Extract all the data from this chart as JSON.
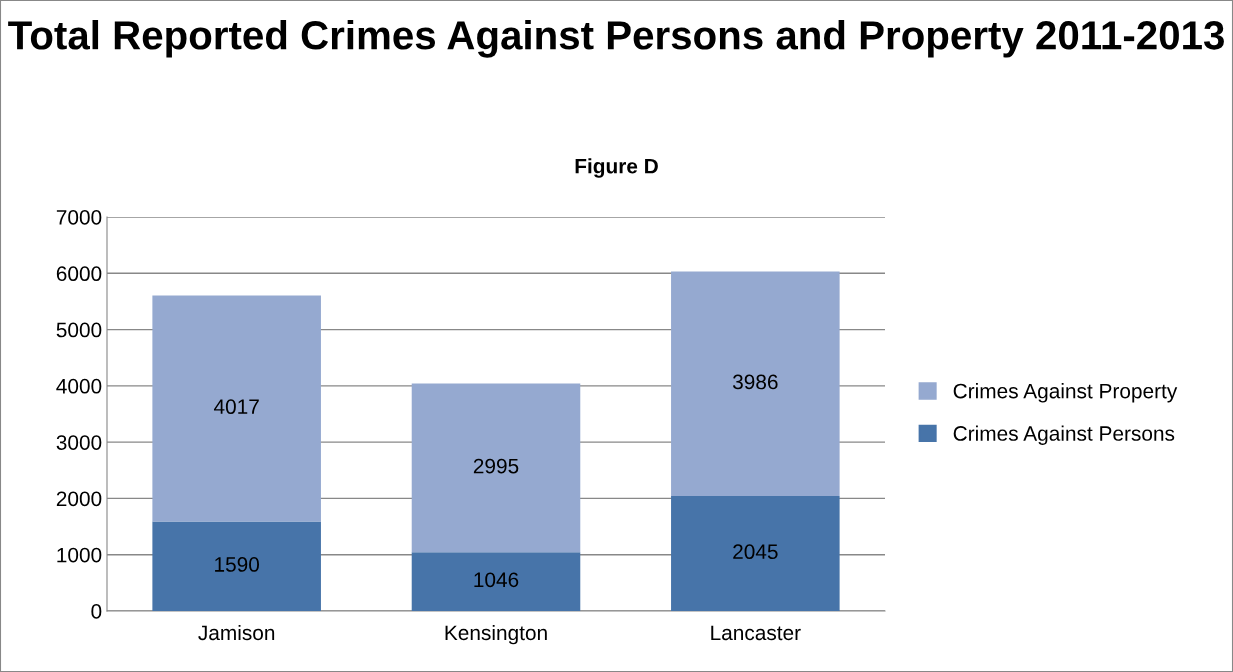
{
  "chart_data": {
    "type": "bar",
    "stacked": true,
    "title": "Total Reported Crimes Against Persons and Property 2011-2013",
    "subtitle": "Figure D",
    "categories": [
      "Jamison",
      "Kensington",
      "Lancaster"
    ],
    "series": [
      {
        "name": "Crimes Against Persons",
        "color": "#4774a9",
        "values": [
          1590,
          1046,
          2045
        ]
      },
      {
        "name": "Crimes Against Property",
        "color": "#95a9d0",
        "values": [
          4017,
          2995,
          3986
        ]
      }
    ],
    "ylim": [
      0,
      7000
    ],
    "yticks": [
      0,
      1000,
      2000,
      3000,
      4000,
      5000,
      6000,
      7000
    ],
    "grid": "y",
    "legend": "right",
    "data_labels": true
  }
}
